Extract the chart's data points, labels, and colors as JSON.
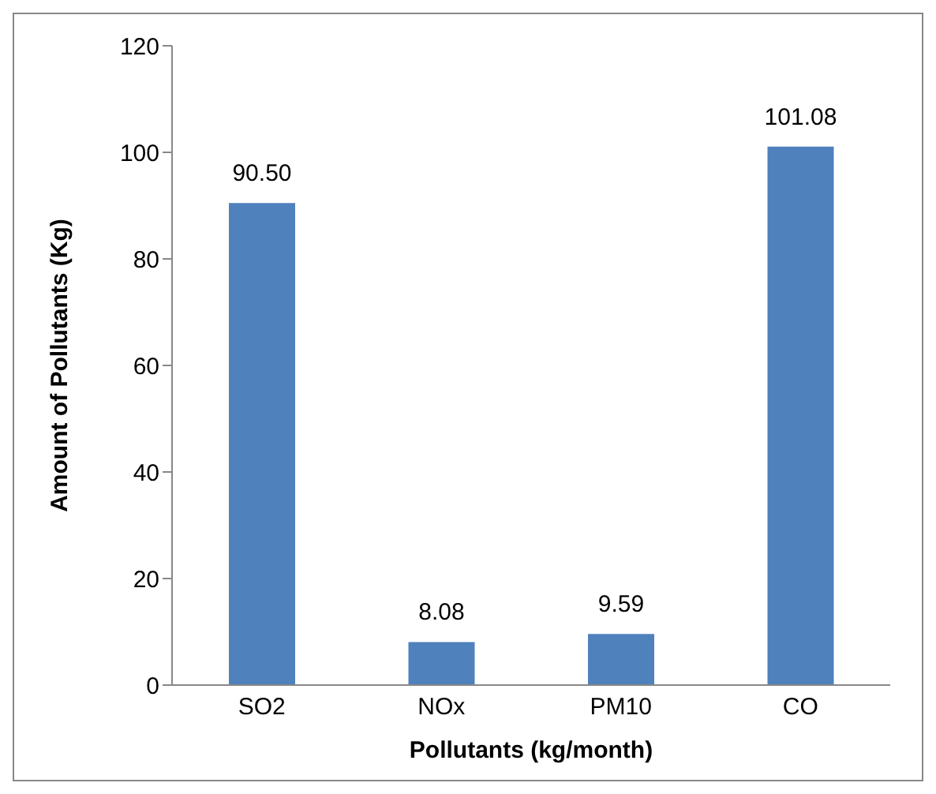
{
  "chart_data": {
    "type": "bar",
    "xlabel": "Pollutants (kg/month)",
    "ylabel": "Amount of Pollutants (Kg)",
    "categories": [
      "SO2",
      "NOx",
      "PM10",
      "CO"
    ],
    "values": [
      90.5,
      8.08,
      9.59,
      101.08
    ],
    "value_labels": [
      "90.50",
      "8.08",
      "9.59",
      "101.08"
    ],
    "color": "#4f81bd",
    "ylim": [
      0,
      120
    ],
    "yticks": [
      0,
      20,
      40,
      60,
      80,
      100,
      120
    ],
    "grid": false,
    "legend": false
  }
}
